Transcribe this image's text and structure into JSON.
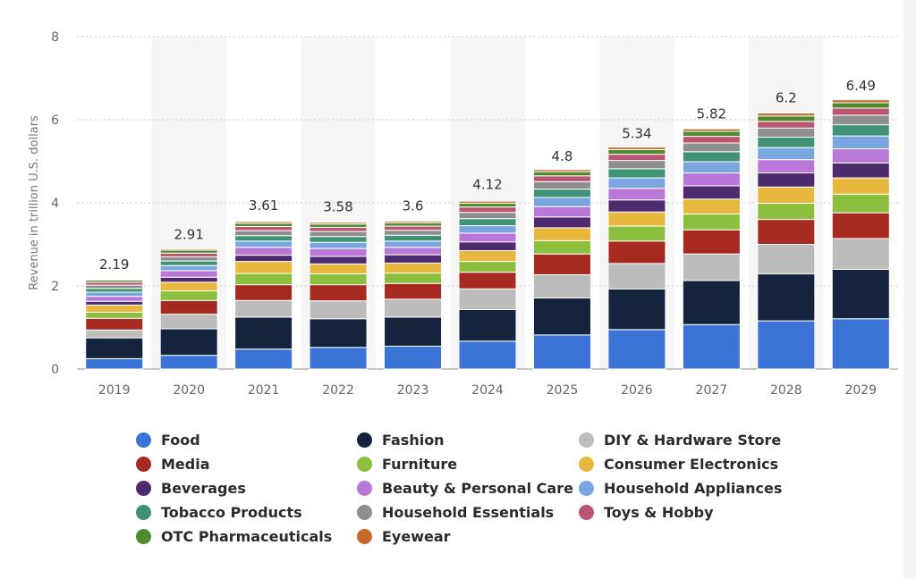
{
  "chart_data": {
    "type": "bar",
    "stacked": true,
    "title": "",
    "xlabel": "",
    "ylabel": "Revenue in trillion U.S. dollars",
    "ylim": [
      0,
      8
    ],
    "yticks": [
      0,
      2,
      4,
      6,
      8
    ],
    "grid": "horizontal dotted",
    "legend_position": "bottom",
    "categories": [
      "2019",
      "2020",
      "2021",
      "2022",
      "2023",
      "2024",
      "2025",
      "2026",
      "2027",
      "2028",
      "2029"
    ],
    "totals": [
      2.19,
      2.91,
      3.61,
      3.58,
      3.6,
      4.12,
      4.8,
      5.34,
      5.82,
      6.2,
      6.49
    ],
    "series": [
      {
        "name": "Food",
        "color": "#3b73d6",
        "values": [
          0.25,
          0.33,
          0.48,
          0.52,
          0.55,
          0.67,
          0.82,
          0.95,
          1.07,
          1.16,
          1.21
        ]
      },
      {
        "name": "Fashion",
        "color": "#14243d",
        "values": [
          0.5,
          0.64,
          0.77,
          0.69,
          0.7,
          0.76,
          0.89,
          0.98,
          1.06,
          1.13,
          1.19
        ]
      },
      {
        "name": "DIY & Hardware Store",
        "color": "#bcbcbc",
        "values": [
          0.19,
          0.35,
          0.4,
          0.43,
          0.43,
          0.5,
          0.56,
          0.61,
          0.64,
          0.71,
          0.74
        ]
      },
      {
        "name": "Media",
        "color": "#a72a21",
        "values": [
          0.28,
          0.33,
          0.38,
          0.39,
          0.38,
          0.4,
          0.5,
          0.54,
          0.58,
          0.6,
          0.62
        ]
      },
      {
        "name": "Furniture",
        "color": "#8cbf3e",
        "values": [
          0.15,
          0.23,
          0.27,
          0.26,
          0.25,
          0.26,
          0.32,
          0.36,
          0.38,
          0.39,
          0.45
        ]
      },
      {
        "name": "Consumer Electronics",
        "color": "#e8b73d",
        "values": [
          0.17,
          0.21,
          0.29,
          0.24,
          0.24,
          0.26,
          0.31,
          0.34,
          0.36,
          0.39,
          0.39
        ]
      },
      {
        "name": "Beverages",
        "color": "#4e2a6e",
        "values": [
          0.09,
          0.12,
          0.15,
          0.18,
          0.2,
          0.21,
          0.26,
          0.29,
          0.32,
          0.34,
          0.36
        ]
      },
      {
        "name": "Beauty & Personal Care",
        "color": "#b978d8",
        "values": [
          0.12,
          0.16,
          0.19,
          0.19,
          0.18,
          0.21,
          0.25,
          0.28,
          0.31,
          0.32,
          0.34
        ]
      },
      {
        "name": "Household Appliances",
        "color": "#79a6de",
        "values": [
          0.1,
          0.12,
          0.15,
          0.15,
          0.15,
          0.18,
          0.22,
          0.25,
          0.27,
          0.29,
          0.31
        ]
      },
      {
        "name": "Tobacco Products",
        "color": "#3f9274",
        "values": [
          0.09,
          0.11,
          0.13,
          0.14,
          0.14,
          0.17,
          0.2,
          0.22,
          0.24,
          0.25,
          0.27
        ]
      },
      {
        "name": "Household Essentials",
        "color": "#8e8e8e",
        "values": [
          0.08,
          0.1,
          0.12,
          0.12,
          0.12,
          0.15,
          0.18,
          0.2,
          0.21,
          0.22,
          0.23
        ]
      },
      {
        "name": "Toys & Hobby",
        "color": "#bb5572",
        "values": [
          0.07,
          0.09,
          0.1,
          0.1,
          0.1,
          0.13,
          0.14,
          0.15,
          0.16,
          0.16,
          0.17
        ]
      },
      {
        "name": "OTC Pharmaceuticals",
        "color": "#4e8a2e",
        "values": [
          0.05,
          0.07,
          0.08,
          0.08,
          0.08,
          0.09,
          0.1,
          0.11,
          0.12,
          0.13,
          0.13
        ]
      },
      {
        "name": "Eyewear",
        "color": "#c8692b",
        "values": [
          0.02,
          0.03,
          0.04,
          0.04,
          0.04,
          0.05,
          0.05,
          0.06,
          0.06,
          0.07,
          0.07
        ]
      }
    ],
    "legend_order": [
      "Food",
      "Fashion",
      "DIY & Hardware Store",
      "Media",
      "Furniture",
      "Consumer Electronics",
      "Beverages",
      "Beauty & Personal Care",
      "Household Appliances",
      "Tobacco Products",
      "Household Essentials",
      "Toys & Hobby",
      "OTC Pharmaceuticals",
      "Eyewear"
    ]
  }
}
